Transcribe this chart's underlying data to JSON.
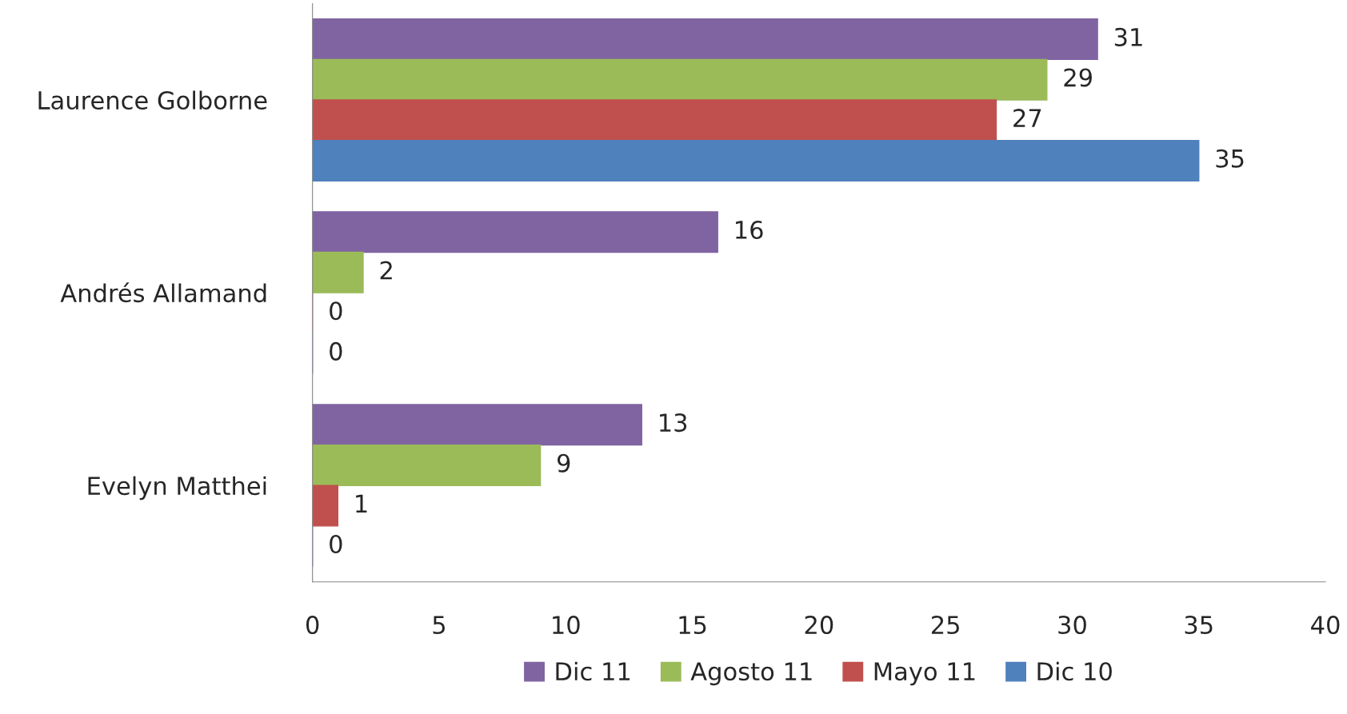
{
  "chart_data": {
    "type": "bar",
    "orientation": "horizontal",
    "categories": [
      "Laurence Golborne",
      "Andrés Allamand",
      "Evelyn Matthei"
    ],
    "series": [
      {
        "name": "Dic 11",
        "color": "#8064a2",
        "values": [
          31,
          16,
          13
        ]
      },
      {
        "name": "Agosto 11",
        "color": "#9bbb59",
        "values": [
          29,
          2,
          9
        ]
      },
      {
        "name": "Mayo 11",
        "color": "#c0504d",
        "values": [
          27,
          0,
          1
        ]
      },
      {
        "name": "Dic 10",
        "color": "#4f81bd",
        "values": [
          35,
          0,
          0
        ]
      }
    ],
    "xlim": [
      0,
      40
    ],
    "xticks": [
      0,
      5,
      10,
      15,
      20,
      25,
      30,
      35,
      40
    ],
    "data_labels": true,
    "grid": false,
    "legend": "bottom"
  }
}
